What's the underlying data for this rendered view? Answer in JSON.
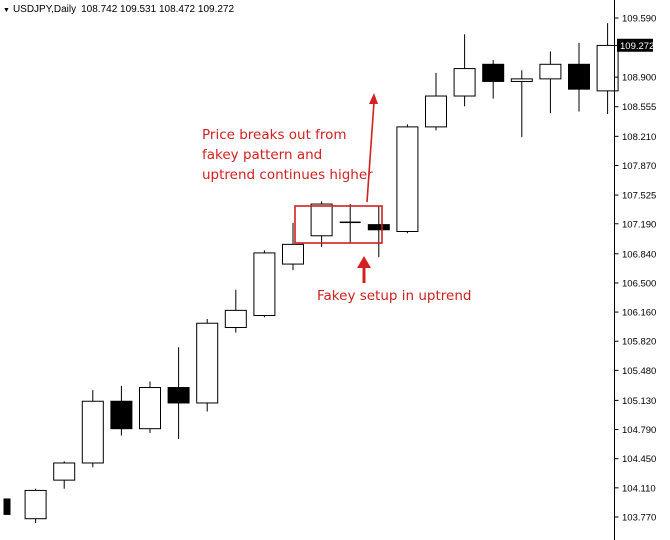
{
  "header": {
    "symbol": "USDJPY,Daily",
    "ohlc": "108.742 109.531 108.472 109.272",
    "triangle_icon": "down-triangle-icon"
  },
  "current_price_label": "109.272",
  "colors": {
    "bull_fill": "#ffffff",
    "bear_fill": "#000000",
    "wick": "#000000",
    "annotation": "#d32020",
    "axis": "#000000",
    "current_price_bg": "#000000"
  },
  "annotations": {
    "breakout_lines": [
      "Price breaks out from",
      "fakey pattern and",
      "uptrend continues higher"
    ],
    "setup_text": "Fakey setup in uptrend"
  },
  "chart_data": {
    "type": "candlestick",
    "title": "",
    "ylim": [
      103.5,
      109.7
    ],
    "grid": false,
    "y_ticks": [
      "109.590",
      "109.272",
      "108.900",
      "108.555",
      "108.210",
      "107.870",
      "107.525",
      "107.190",
      "106.840",
      "106.500",
      "106.160",
      "105.820",
      "105.480",
      "105.130",
      "104.790",
      "104.450",
      "104.110",
      "103.770"
    ],
    "candles": [
      {
        "open": 103.98,
        "high": 103.98,
        "low": 103.8,
        "close": 103.8,
        "bear": true
      },
      {
        "open": 103.75,
        "high": 104.1,
        "low": 103.7,
        "close": 104.08,
        "bear": false
      },
      {
        "open": 104.2,
        "high": 104.42,
        "low": 104.1,
        "close": 104.4,
        "bear": false
      },
      {
        "open": 104.4,
        "high": 105.25,
        "low": 104.35,
        "close": 105.12,
        "bear": false
      },
      {
        "open": 105.12,
        "high": 105.3,
        "low": 104.72,
        "close": 104.8,
        "bear": true
      },
      {
        "open": 104.8,
        "high": 105.35,
        "low": 104.75,
        "close": 105.28,
        "bear": false
      },
      {
        "open": 105.28,
        "high": 105.75,
        "low": 104.68,
        "close": 105.1,
        "bear": true
      },
      {
        "open": 105.1,
        "high": 106.08,
        "low": 105.0,
        "close": 106.03,
        "bear": false
      },
      {
        "open": 105.98,
        "high": 106.42,
        "low": 105.92,
        "close": 106.18,
        "bear": false
      },
      {
        "open": 106.12,
        "high": 106.88,
        "low": 106.1,
        "close": 106.85,
        "bear": false
      },
      {
        "open": 106.72,
        "high": 107.2,
        "low": 106.65,
        "close": 106.95,
        "bear": false
      },
      {
        "open": 107.05,
        "high": 107.45,
        "low": 106.92,
        "close": 107.42,
        "bear": false
      },
      {
        "open": 107.2,
        "high": 107.42,
        "low": 106.96,
        "close": 107.21,
        "bear": false
      },
      {
        "open": 107.18,
        "high": 107.4,
        "low": 106.8,
        "close": 107.12,
        "bear": true
      },
      {
        "open": 107.1,
        "high": 108.35,
        "low": 107.08,
        "close": 108.32,
        "bear": false
      },
      {
        "open": 108.32,
        "high": 108.95,
        "low": 108.28,
        "close": 108.68,
        "bear": false
      },
      {
        "open": 108.68,
        "high": 109.4,
        "low": 108.56,
        "close": 109.0,
        "bear": false
      },
      {
        "open": 109.05,
        "high": 109.1,
        "low": 108.65,
        "close": 108.85,
        "bear": true
      },
      {
        "open": 108.85,
        "high": 108.98,
        "low": 108.2,
        "close": 108.88,
        "bear": false
      },
      {
        "open": 108.88,
        "high": 109.2,
        "low": 108.48,
        "close": 109.05,
        "bear": false
      },
      {
        "open": 109.05,
        "high": 109.3,
        "low": 108.5,
        "close": 108.76,
        "bear": true
      },
      {
        "open": 108.74,
        "high": 109.53,
        "low": 108.47,
        "close": 109.27,
        "bear": false
      }
    ]
  }
}
